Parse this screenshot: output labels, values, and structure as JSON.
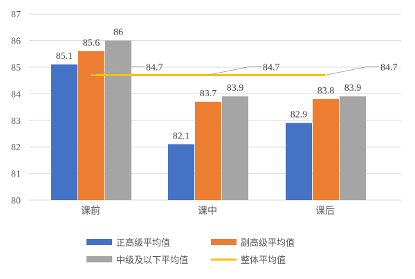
{
  "chart_data": {
    "type": "bar",
    "categories": [
      "课前",
      "课中",
      "课后"
    ],
    "series": [
      {
        "name": "正高级平均值",
        "values": [
          85.1,
          82.1,
          82.9
        ],
        "color": "#4472C4"
      },
      {
        "name": "副高级平均值",
        "values": [
          85.6,
          83.7,
          83.8
        ],
        "color": "#ED7D31"
      },
      {
        "name": "中级及以下平均值",
        "values": [
          86,
          83.9,
          83.9
        ],
        "color": "#A5A5A5"
      }
    ],
    "line_series": {
      "name": "整体平均值",
      "values": [
        84.7,
        84.7,
        84.7
      ],
      "color": "#FFC000"
    },
    "y_ticks": [
      "80",
      "81",
      "82",
      "83",
      "84",
      "85",
      "86",
      "87"
    ],
    "ylim": [
      80,
      87
    ],
    "grid": true,
    "legend_position": "bottom"
  }
}
